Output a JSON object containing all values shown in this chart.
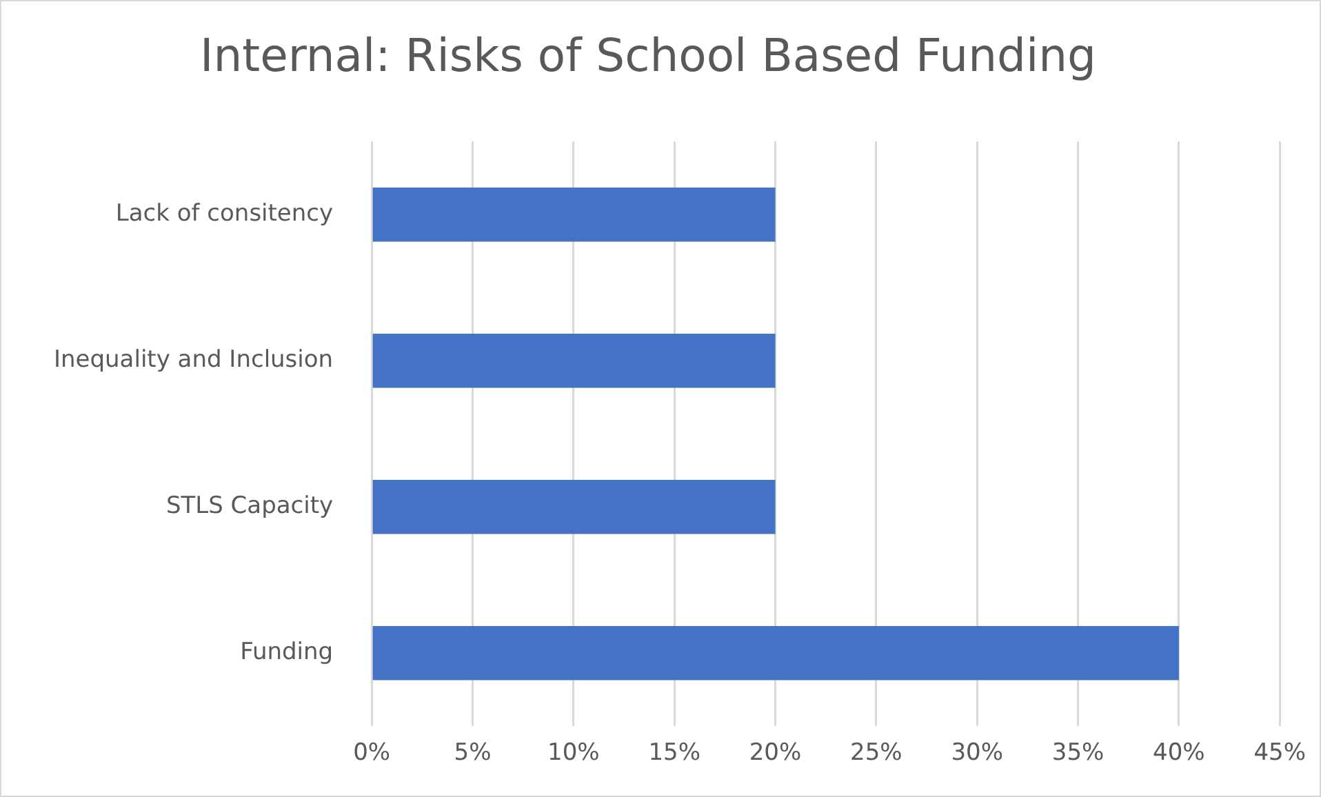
{
  "chart_data": {
    "type": "bar",
    "orientation": "horizontal",
    "title": "Internal: Risks of School Based Funding",
    "categories": [
      "Lack of consitency",
      "Inequality and Inclusion",
      "STLS Capacity",
      "Funding"
    ],
    "values": [
      20,
      20,
      20,
      40
    ],
    "color": "#4472c4",
    "xlim": [
      0,
      45
    ],
    "xticks": [
      {
        "value": 0,
        "label": "0%"
      },
      {
        "value": 5,
        "label": "5%"
      },
      {
        "value": 10,
        "label": "10%"
      },
      {
        "value": 15,
        "label": "15%"
      },
      {
        "value": 20,
        "label": "20%"
      },
      {
        "value": 25,
        "label": "25%"
      },
      {
        "value": 30,
        "label": "30%"
      },
      {
        "value": 35,
        "label": "35%"
      },
      {
        "value": 40,
        "label": "40%"
      },
      {
        "value": 45,
        "label": "45%"
      }
    ],
    "grid": "x"
  }
}
